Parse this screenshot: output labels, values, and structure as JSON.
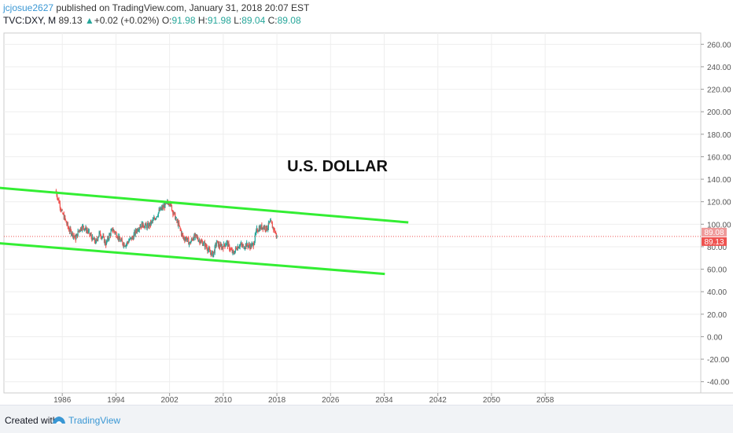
{
  "header": {
    "author": "jcjosue2627",
    "published_text": " published on TradingView.com, January 31, 2018 20:07 EST",
    "symbol": "TVC:DXY, M",
    "last": "89.13",
    "arrow": "▲",
    "change": "+0.02 (+0.02%)",
    "o_label": "O:",
    "o_val": "91.98",
    "h_label": "H:",
    "h_val": "91.98",
    "l_label": "L:",
    "l_val": "89.04",
    "c_label": "C:",
    "c_val": "89.08"
  },
  "footer": {
    "created_with": "Created with",
    "brand": "TradingView"
  },
  "colors": {
    "up_candle": "#26a69a",
    "down_candle": "#ef5350",
    "channel": "#33ee33",
    "price_line": "#ef5350",
    "label_close_bg": "#ef9a9a",
    "label_last_bg": "#ef5350"
  },
  "chart_data": {
    "type": "candlestick",
    "annotation": "U.S. DOLLAR",
    "y_ticks": [
      "260.00",
      "240.00",
      "220.00",
      "200.00",
      "180.00",
      "160.00",
      "140.00",
      "120.00",
      "100.00",
      "80.00",
      "60.00",
      "40.00",
      "20.00",
      "0.00",
      "-20.00",
      "-40.00"
    ],
    "x_ticks": [
      "1986",
      "1994",
      "2002",
      "2010",
      "2018",
      "2026",
      "2034",
      "2042",
      "2050",
      "2058"
    ],
    "ylim": [
      -50,
      270
    ],
    "xlim": [
      1977.3,
      2081.2
    ],
    "price_labels": [
      "89.08",
      "89.13"
    ],
    "current_price": 89.13,
    "close_price": 89.08,
    "series_close": [
      [
        1985.0,
        130
      ],
      [
        1985.5,
        120
      ],
      [
        1986.0,
        110
      ],
      [
        1986.5,
        103
      ],
      [
        1987.0,
        95
      ],
      [
        1987.5,
        92
      ],
      [
        1988.0,
        87
      ],
      [
        1988.5,
        95
      ],
      [
        1989.0,
        98
      ],
      [
        1989.5,
        96
      ],
      [
        1990.0,
        92
      ],
      [
        1990.5,
        87
      ],
      [
        1991.0,
        84
      ],
      [
        1991.5,
        92
      ],
      [
        1992.0,
        89
      ],
      [
        1992.5,
        82
      ],
      [
        1993.0,
        90
      ],
      [
        1993.5,
        95
      ],
      [
        1994.0,
        92
      ],
      [
        1994.5,
        87
      ],
      [
        1995.0,
        83
      ],
      [
        1995.5,
        82
      ],
      [
        1996.0,
        86
      ],
      [
        1996.5,
        88
      ],
      [
        1997.0,
        94
      ],
      [
        1997.5,
        98
      ],
      [
        1998.0,
        100
      ],
      [
        1998.5,
        98
      ],
      [
        1999.0,
        99
      ],
      [
        1999.5,
        103
      ],
      [
        2000.0,
        107
      ],
      [
        2000.5,
        112
      ],
      [
        2001.0,
        115
      ],
      [
        2001.5,
        118
      ],
      [
        2002.0,
        120
      ],
      [
        2002.5,
        111
      ],
      [
        2003.0,
        104
      ],
      [
        2003.5,
        97
      ],
      [
        2004.0,
        88
      ],
      [
        2004.5,
        87
      ],
      [
        2005.0,
        83
      ],
      [
        2005.5,
        88
      ],
      [
        2006.0,
        89
      ],
      [
        2006.5,
        85
      ],
      [
        2007.0,
        83
      ],
      [
        2007.5,
        80
      ],
      [
        2008.0,
        75
      ],
      [
        2008.5,
        73
      ],
      [
        2009.0,
        84
      ],
      [
        2009.5,
        80
      ],
      [
        2010.0,
        80
      ],
      [
        2010.5,
        84
      ],
      [
        2011.0,
        78
      ],
      [
        2011.5,
        74
      ],
      [
        2012.0,
        79
      ],
      [
        2012.5,
        82
      ],
      [
        2013.0,
        80
      ],
      [
        2013.5,
        82
      ],
      [
        2014.0,
        80
      ],
      [
        2014.5,
        82
      ],
      [
        2015.0,
        95
      ],
      [
        2015.5,
        97
      ],
      [
        2016.0,
        98
      ],
      [
        2016.5,
        96
      ],
      [
        2017.0,
        102
      ],
      [
        2017.5,
        96
      ],
      [
        2018.0,
        89.08
      ]
    ],
    "channel_upper": [
      [
        1969.1,
        136.1
      ],
      [
        2037.6,
        101.6
      ]
    ],
    "channel_lower": [
      [
        1972.6,
        85.0
      ],
      [
        2034.1,
        55.8
      ]
    ]
  }
}
